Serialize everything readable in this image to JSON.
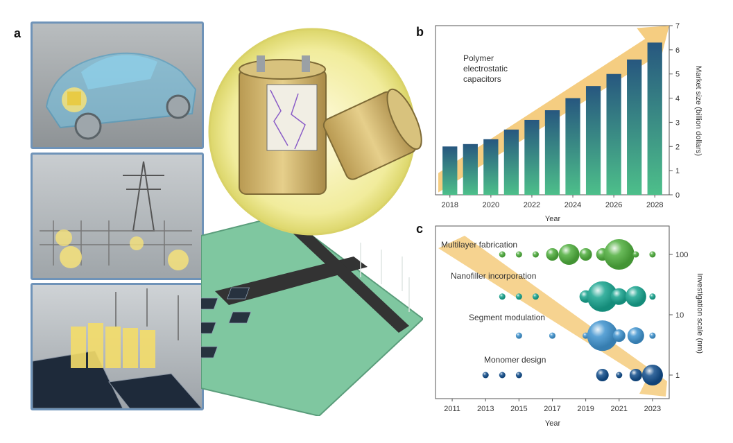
{
  "panels": {
    "a": "a",
    "b": "b",
    "c": "c"
  },
  "chart_data": [
    {
      "type": "bar",
      "panel": "b",
      "annotation": "Polymer electrostatic capacitors",
      "categories": [
        "2018",
        "2019",
        "2020",
        "2021",
        "2022",
        "2023",
        "2024",
        "2025",
        "2026",
        "2027",
        "2028"
      ],
      "values": [
        2.0,
        2.1,
        2.3,
        2.7,
        3.1,
        3.5,
        4.0,
        4.5,
        5.0,
        5.6,
        6.3
      ],
      "xticks": [
        "2018",
        "2020",
        "2022",
        "2024",
        "2026",
        "2028"
      ],
      "yticks": [
        0,
        1,
        2,
        3,
        4,
        5,
        6,
        7
      ],
      "ylim": [
        0,
        7
      ],
      "xlabel": "Year",
      "ylabel": "Market size (billion dollars)",
      "axis_side": "right",
      "grid": false,
      "colors": {
        "bar_top": "#27577f",
        "bar_bottom": "#4dbf8a",
        "arrow": "#f3c46b"
      }
    },
    {
      "type": "scatter",
      "panel": "c",
      "xlabel": "Year",
      "ylabel": "Investigation scale (nm)",
      "yscale": "log",
      "yticks": [
        "1",
        "10",
        "100"
      ],
      "xticks": [
        "2011",
        "2013",
        "2015",
        "2017",
        "2019",
        "2021",
        "2023"
      ],
      "xlim": [
        2010,
        2024
      ],
      "axis_side": "right",
      "grid": false,
      "series": [
        {
          "name": "Multilayer fabrication",
          "scale_nm": 100,
          "color": "#4fae3d",
          "points": [
            {
              "x": 2014,
              "size": 1
            },
            {
              "x": 2015,
              "size": 1
            },
            {
              "x": 2016,
              "size": 1
            },
            {
              "x": 2017,
              "size": 2
            },
            {
              "x": 2018,
              "size": 4
            },
            {
              "x": 2019,
              "size": 2
            },
            {
              "x": 2020,
              "size": 2
            },
            {
              "x": 2021,
              "size": 5
            },
            {
              "x": 2022,
              "size": 1
            },
            {
              "x": 2023,
              "size": 1
            }
          ]
        },
        {
          "name": "Nanofiller incorporation",
          "scale_nm": 20,
          "color": "#18a48f",
          "points": [
            {
              "x": 2014,
              "size": 1
            },
            {
              "x": 2015,
              "size": 1
            },
            {
              "x": 2016,
              "size": 1
            },
            {
              "x": 2019,
              "size": 2
            },
            {
              "x": 2020,
              "size": 5
            },
            {
              "x": 2021,
              "size": 3
            },
            {
              "x": 2022,
              "size": 4
            },
            {
              "x": 2023,
              "size": 1
            }
          ]
        },
        {
          "name": "Segment modulation",
          "scale_nm": 4.5,
          "color": "#3f93cf",
          "points": [
            {
              "x": 2015,
              "size": 1
            },
            {
              "x": 2017,
              "size": 1
            },
            {
              "x": 2019,
              "size": 1
            },
            {
              "x": 2020,
              "size": 5
            },
            {
              "x": 2021,
              "size": 2
            },
            {
              "x": 2022,
              "size": 3
            },
            {
              "x": 2023,
              "size": 1
            }
          ]
        },
        {
          "name": "Monomer design",
          "scale_nm": 1,
          "color": "#124e8c",
          "points": [
            {
              "x": 2013,
              "size": 1
            },
            {
              "x": 2014,
              "size": 1
            },
            {
              "x": 2015,
              "size": 1
            },
            {
              "x": 2020,
              "size": 2
            },
            {
              "x": 2021,
              "size": 1
            },
            {
              "x": 2022,
              "size": 2
            },
            {
              "x": 2023,
              "size": 4
            }
          ]
        }
      ]
    }
  ]
}
